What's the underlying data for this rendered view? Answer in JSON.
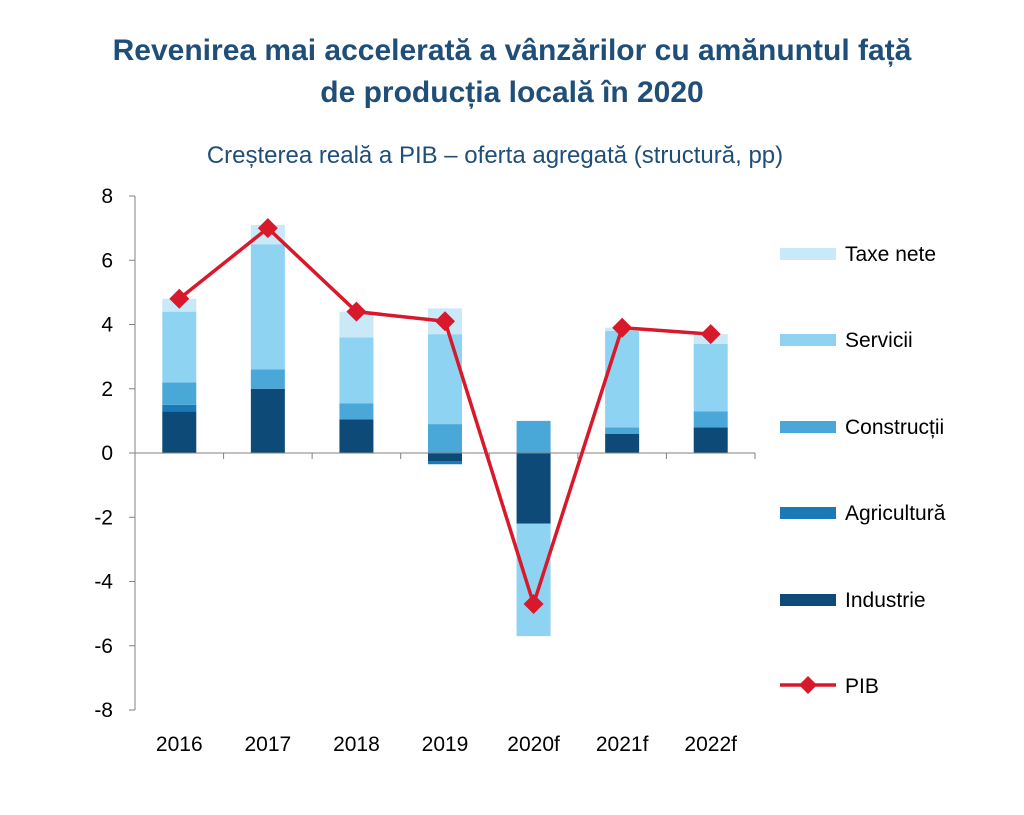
{
  "title_line1": "Revenirea mai accelerată a vânzărilor cu amănuntul față",
  "title_line2": "de producția locală în 2020",
  "subtitle": "Creșterea reală a PIB – oferta agregată (structură, pp)",
  "colors": {
    "taxe_nete": "#c9e8f8",
    "servicii": "#8fd3f2",
    "constructii": "#4aa8d8",
    "agricultura": "#1a7ab8",
    "industrie": "#0e4a78",
    "pib": "#d7192b"
  },
  "chart_data": {
    "type": "bar",
    "stacked": true,
    "categories": [
      "2016",
      "2017",
      "2018",
      "2019",
      "2020f",
      "2021f",
      "2022f"
    ],
    "ylim": [
      -8,
      8
    ],
    "yticks": [
      8,
      6,
      4,
      2,
      0,
      -2,
      -4,
      -6,
      -8
    ],
    "series": [
      {
        "name": "Industrie",
        "key": "industrie",
        "values": [
          1.3,
          2.0,
          1.05,
          -0.25,
          -2.2,
          0.6,
          0.8
        ]
      },
      {
        "name": "Agricultură",
        "key": "agricultura",
        "values": [
          0.2,
          0.0,
          0.0,
          -0.1,
          0.0,
          0.0,
          0.0
        ]
      },
      {
        "name": "Construcții",
        "key": "constructii",
        "values": [
          0.7,
          0.6,
          0.5,
          0.9,
          1.0,
          0.2,
          0.5
        ]
      },
      {
        "name": "Servicii",
        "key": "servicii",
        "values": [
          2.2,
          3.9,
          2.05,
          2.8,
          -3.5,
          3.0,
          2.1
        ]
      },
      {
        "name": "Taxe nete",
        "key": "taxe_nete",
        "values": [
          0.4,
          0.6,
          0.8,
          0.8,
          0.0,
          0.1,
          0.3
        ]
      }
    ],
    "line": {
      "name": "PIB",
      "values": [
        4.8,
        7.0,
        4.4,
        4.1,
        -4.7,
        3.9,
        3.7
      ]
    },
    "legend": {
      "placement": "right",
      "items": [
        "Taxe nete",
        "Servicii",
        "Construcții",
        "Agricultură",
        "Industrie",
        "PIB"
      ]
    }
  }
}
